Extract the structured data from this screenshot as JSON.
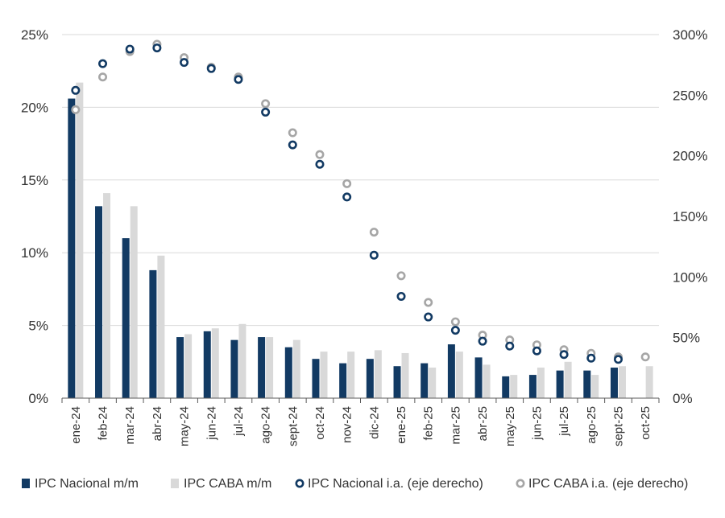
{
  "chart_data": {
    "type": "bar",
    "categories": [
      "ene-24",
      "feb-24",
      "mar-24",
      "abr-24",
      "may-24",
      "jun-24",
      "jul-24",
      "ago-24",
      "sept-24",
      "oct-24",
      "nov-24",
      "dic-24",
      "ene-25",
      "feb-25",
      "mar-25",
      "abr-25",
      "may-25",
      "jun-25",
      "jul-25",
      "ago-25",
      "sept-25",
      "oct-25"
    ],
    "y_left": {
      "min": 0,
      "max": 25,
      "ticks": [
        0,
        5,
        10,
        15,
        20,
        25
      ],
      "tick_labels": [
        "0%",
        "5%",
        "10%",
        "15%",
        "20%",
        "25%"
      ]
    },
    "y_right": {
      "min": 0,
      "max": 300,
      "ticks": [
        0,
        50,
        100,
        150,
        200,
        250,
        300
      ],
      "tick_labels": [
        "0%",
        "50%",
        "100%",
        "150%",
        "200%",
        "250%",
        "300%"
      ]
    },
    "grid": true,
    "legend_position": "bottom",
    "series": [
      {
        "name": "IPC Nacional m/m",
        "kind": "bar",
        "axis": "left",
        "color": "#123a63",
        "values": [
          20.6,
          13.2,
          11.0,
          8.8,
          4.2,
          4.6,
          4.0,
          4.2,
          3.5,
          2.7,
          2.4,
          2.7,
          2.2,
          2.4,
          3.7,
          2.8,
          1.5,
          1.6,
          1.9,
          1.9,
          2.1,
          null
        ]
      },
      {
        "name": "IPC CABA m/m",
        "kind": "bar",
        "axis": "left",
        "color": "#d9d9d9",
        "values": [
          21.7,
          14.1,
          13.2,
          9.8,
          4.4,
          4.8,
          5.1,
          4.2,
          4.0,
          3.2,
          3.2,
          3.3,
          3.1,
          2.1,
          3.2,
          2.3,
          1.6,
          2.1,
          2.5,
          1.6,
          2.2,
          2.2
        ]
      },
      {
        "name": "IPC Nacional i.a. (eje derecho)",
        "kind": "scatter",
        "axis": "right",
        "color": "#123a63",
        "values": [
          254,
          276,
          288,
          289,
          277,
          272,
          263,
          236,
          209,
          193,
          166,
          118,
          84,
          67,
          56,
          47,
          43,
          39,
          36,
          33,
          32,
          null
        ]
      },
      {
        "name": "IPC CABA i.a. (eje derecho)",
        "kind": "scatter",
        "axis": "right",
        "color": "#a6a6a6",
        "values": [
          238,
          265,
          286,
          292,
          281,
          273,
          265,
          243,
          219,
          201,
          177,
          137,
          101,
          79,
          63,
          52,
          48,
          44,
          40,
          37,
          34,
          34
        ]
      }
    ]
  }
}
